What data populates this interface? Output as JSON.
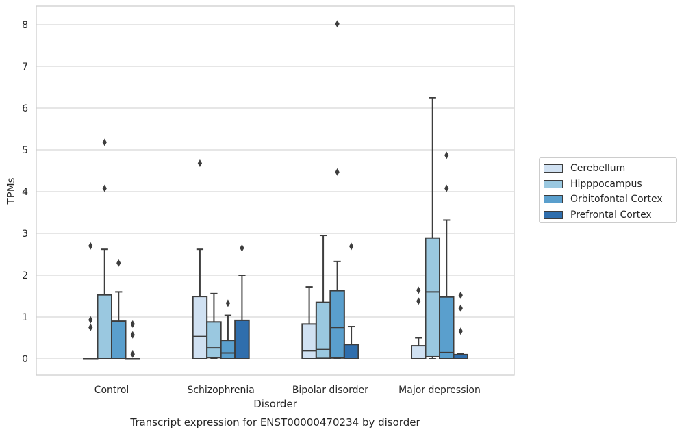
{
  "chart_data": {
    "type": "box",
    "caption": "Transcript expression for ENST00000470234 by disorder",
    "xlabel": "Disorder",
    "ylabel": "TPMs",
    "ylim": [
      -0.4,
      8.45
    ],
    "yticks": [
      0,
      1,
      2,
      3,
      4,
      5,
      6,
      7,
      8
    ],
    "categories": [
      "Control",
      "Schizophrenia",
      "Bipolar disorder",
      "Major depression"
    ],
    "grid": true,
    "legend_position": "right",
    "series": [
      {
        "name": "Cerebellum",
        "color": "#d0e1f2",
        "boxes": [
          {
            "q1": 0,
            "median": 0,
            "q3": 0,
            "whisker_low": 0,
            "whisker_high": 0,
            "outliers": [
              2.7,
              0.93,
              0.75
            ]
          },
          {
            "q1": 0,
            "median": 0.53,
            "q3": 1.49,
            "whisker_low": 0,
            "whisker_high": 2.62,
            "outliers": [
              4.68
            ]
          },
          {
            "q1": 0,
            "median": 0.19,
            "q3": 0.83,
            "whisker_low": 0,
            "whisker_high": 1.72,
            "outliers": []
          },
          {
            "q1": 0,
            "median": 0,
            "q3": 0.31,
            "whisker_low": 0,
            "whisker_high": 0.5,
            "outliers": [
              1.64,
              1.38
            ]
          }
        ]
      },
      {
        "name": "Hipppocampus",
        "color": "#9ac8e0",
        "boxes": [
          {
            "q1": 0,
            "median": 0,
            "q3": 1.53,
            "whisker_low": 0,
            "whisker_high": 2.62,
            "outliers": [
              5.18,
              4.08
            ]
          },
          {
            "q1": 0.03,
            "median": 0.26,
            "q3": 0.88,
            "whisker_low": 0,
            "whisker_high": 1.56,
            "outliers": []
          },
          {
            "q1": 0.01,
            "median": 0.22,
            "q3": 1.35,
            "whisker_low": 0,
            "whisker_high": 2.95,
            "outliers": []
          },
          {
            "q1": 0.05,
            "median": 1.6,
            "q3": 2.89,
            "whisker_low": 0,
            "whisker_high": 6.25,
            "outliers": []
          }
        ]
      },
      {
        "name": "Orbitofontal Cortex",
        "color": "#5a9fcd",
        "boxes": [
          {
            "q1": 0,
            "median": 0,
            "q3": 0.9,
            "whisker_low": 0,
            "whisker_high": 1.6,
            "outliers": [
              2.29
            ]
          },
          {
            "q1": 0,
            "median": 0.14,
            "q3": 0.44,
            "whisker_low": 0,
            "whisker_high": 1.04,
            "outliers": [
              1.33
            ]
          },
          {
            "q1": 0.02,
            "median": 0.75,
            "q3": 1.63,
            "whisker_low": 0,
            "whisker_high": 2.33,
            "outliers": [
              8.02,
              4.47
            ]
          },
          {
            "q1": 0,
            "median": 0.15,
            "q3": 1.48,
            "whisker_low": 0,
            "whisker_high": 3.32,
            "outliers": [
              4.87,
              4.08
            ]
          }
        ]
      },
      {
        "name": "Prefrontal Cortex",
        "color": "#2f6ead",
        "boxes": [
          {
            "q1": 0,
            "median": 0,
            "q3": 0,
            "whisker_low": 0,
            "whisker_high": 0,
            "outliers": [
              0.83,
              0.57,
              0.11
            ]
          },
          {
            "q1": 0,
            "median": 0,
            "q3": 0.92,
            "whisker_low": 0,
            "whisker_high": 2.0,
            "outliers": [
              2.65
            ]
          },
          {
            "q1": 0,
            "median": 0,
            "q3": 0.34,
            "whisker_low": 0,
            "whisker_high": 0.77,
            "outliers": [
              2.69
            ]
          },
          {
            "q1": 0,
            "median": 0,
            "q3": 0.1,
            "whisker_low": 0,
            "whisker_high": 0.12,
            "outliers": [
              1.52,
              1.21,
              0.66
            ]
          }
        ]
      }
    ]
  }
}
